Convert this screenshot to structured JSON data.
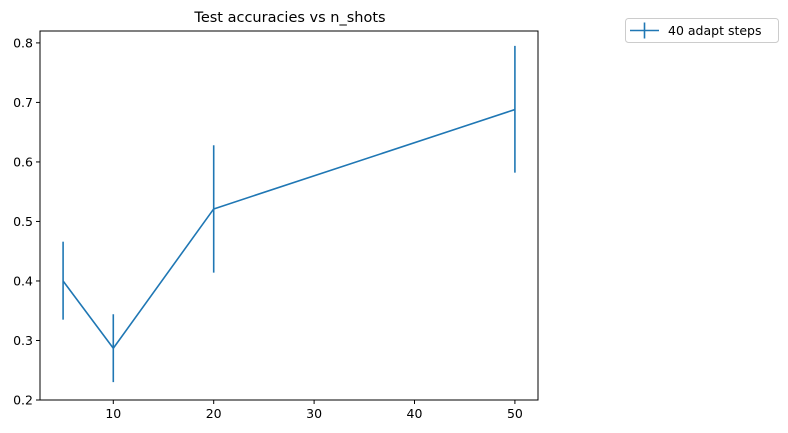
{
  "chart_data": {
    "type": "line",
    "title": "Test accuracies vs n_shots",
    "xlabel": "",
    "ylabel": "",
    "xlim": [
      2.7,
      52.3
    ],
    "ylim": [
      0.2,
      0.82
    ],
    "xticks": [
      10,
      20,
      30,
      40,
      50
    ],
    "yticks": [
      0.2,
      0.3,
      0.4,
      0.5,
      0.6,
      0.7,
      0.8
    ],
    "grid": false,
    "legend_placement": "outside-top-right",
    "series": [
      {
        "name": "40 adapt steps",
        "color": "#1f77b4",
        "x": [
          5,
          10,
          20,
          50
        ],
        "y": [
          0.4,
          0.287,
          0.521,
          0.688
        ],
        "yerr_low": [
          0.335,
          0.23,
          0.414,
          0.582
        ],
        "yerr_high": [
          0.466,
          0.344,
          0.628,
          0.795
        ]
      }
    ]
  }
}
